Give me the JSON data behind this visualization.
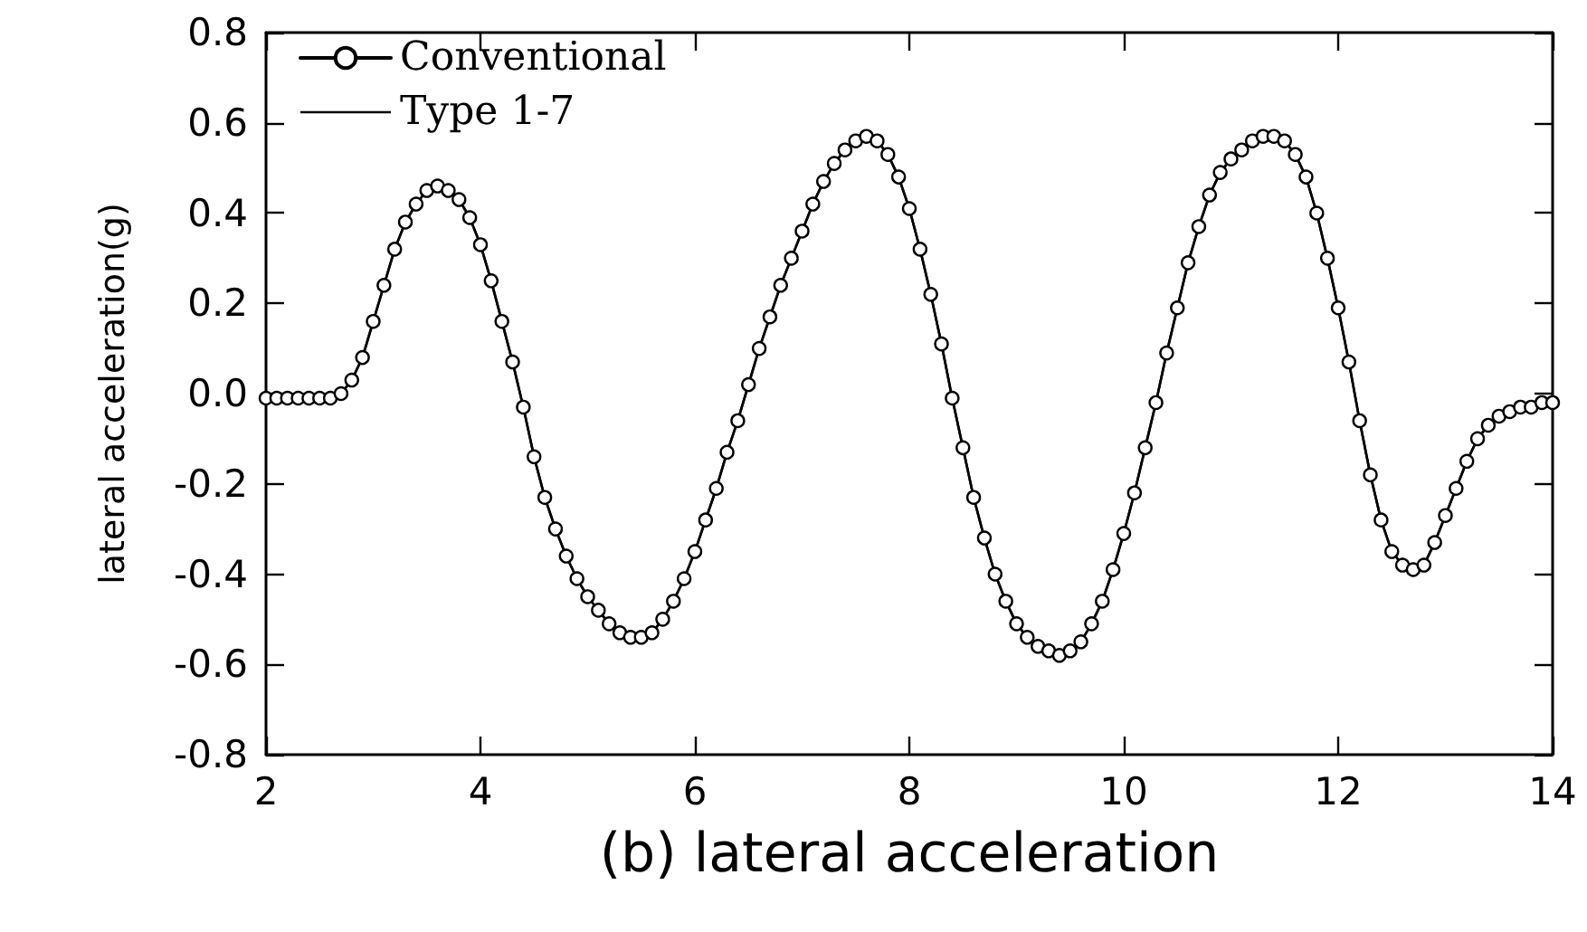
{
  "chart_data": {
    "type": "line",
    "xlabel": "(b) lateral acceleration",
    "ylabel": "lateral acceleration(g)",
    "x": [
      2.0,
      2.1,
      2.2,
      2.3,
      2.4,
      2.5,
      2.6,
      2.7,
      2.8,
      2.9,
      3.0,
      3.1,
      3.2,
      3.3,
      3.4,
      3.5,
      3.6,
      3.7,
      3.8,
      3.9,
      4.0,
      4.1,
      4.2,
      4.3,
      4.4,
      4.5,
      4.6,
      4.7,
      4.8,
      4.9,
      5.0,
      5.1,
      5.2,
      5.3,
      5.4,
      5.5,
      5.6,
      5.7,
      5.8,
      5.9,
      6.0,
      6.1,
      6.2,
      6.3,
      6.4,
      6.5,
      6.6,
      6.7,
      6.8,
      6.9,
      7.0,
      7.1,
      7.2,
      7.3,
      7.4,
      7.5,
      7.6,
      7.7,
      7.8,
      7.9,
      8.0,
      8.1,
      8.2,
      8.3,
      8.4,
      8.5,
      8.6,
      8.7,
      8.8,
      8.9,
      9.0,
      9.1,
      9.2,
      9.3,
      9.4,
      9.5,
      9.6,
      9.7,
      9.8,
      9.9,
      10.0,
      10.1,
      10.2,
      10.3,
      10.4,
      10.5,
      10.6,
      10.7,
      10.8,
      10.9,
      11.0,
      11.1,
      11.2,
      11.3,
      11.4,
      11.5,
      11.6,
      11.7,
      11.8,
      11.9,
      12.0,
      12.1,
      12.2,
      12.3,
      12.4,
      12.5,
      12.6,
      12.7,
      12.8,
      12.9,
      13.0,
      13.1,
      13.2,
      13.3,
      13.4,
      13.5,
      13.6,
      13.7,
      13.8,
      13.9,
      14.0
    ],
    "series": [
      {
        "name": "Conventional",
        "color": "#000000",
        "marker": "circle",
        "values": [
          -0.01,
          -0.01,
          -0.01,
          -0.01,
          -0.01,
          -0.01,
          -0.01,
          0.0,
          0.03,
          0.08,
          0.16,
          0.24,
          0.32,
          0.38,
          0.42,
          0.45,
          0.46,
          0.45,
          0.43,
          0.39,
          0.33,
          0.25,
          0.16,
          0.07,
          -0.03,
          -0.14,
          -0.23,
          -0.3,
          -0.36,
          -0.41,
          -0.45,
          -0.48,
          -0.51,
          -0.53,
          -0.54,
          -0.54,
          -0.53,
          -0.5,
          -0.46,
          -0.41,
          -0.35,
          -0.28,
          -0.21,
          -0.13,
          -0.06,
          0.02,
          0.1,
          0.17,
          0.24,
          0.3,
          0.36,
          0.42,
          0.47,
          0.51,
          0.54,
          0.56,
          0.57,
          0.56,
          0.53,
          0.48,
          0.41,
          0.32,
          0.22,
          0.11,
          -0.01,
          -0.12,
          -0.23,
          -0.32,
          -0.4,
          -0.46,
          -0.51,
          -0.54,
          -0.56,
          -0.57,
          -0.58,
          -0.57,
          -0.55,
          -0.51,
          -0.46,
          -0.39,
          -0.31,
          -0.22,
          -0.12,
          -0.02,
          0.09,
          0.19,
          0.29,
          0.37,
          0.44,
          0.49,
          0.52,
          0.54,
          0.56,
          0.57,
          0.57,
          0.56,
          0.53,
          0.48,
          0.4,
          0.3,
          0.19,
          0.07,
          -0.06,
          -0.18,
          -0.28,
          -0.35,
          -0.38,
          -0.39,
          -0.38,
          -0.33,
          -0.27,
          -0.21,
          -0.15,
          -0.1,
          -0.07,
          -0.05,
          -0.04,
          -0.03,
          -0.03,
          -0.02,
          -0.02
        ]
      },
      {
        "name": "Type 1-7",
        "color": "#000000",
        "marker": "none",
        "values": [
          -0.01,
          -0.01,
          -0.01,
          -0.01,
          -0.01,
          -0.01,
          -0.01,
          0.0,
          0.03,
          0.08,
          0.16,
          0.24,
          0.32,
          0.38,
          0.42,
          0.45,
          0.46,
          0.45,
          0.43,
          0.39,
          0.33,
          0.25,
          0.16,
          0.07,
          -0.03,
          -0.14,
          -0.23,
          -0.3,
          -0.36,
          -0.41,
          -0.45,
          -0.48,
          -0.51,
          -0.53,
          -0.54,
          -0.54,
          -0.53,
          -0.5,
          -0.46,
          -0.41,
          -0.35,
          -0.28,
          -0.21,
          -0.13,
          -0.06,
          0.02,
          0.1,
          0.17,
          0.24,
          0.3,
          0.36,
          0.42,
          0.47,
          0.51,
          0.54,
          0.56,
          0.57,
          0.56,
          0.53,
          0.48,
          0.41,
          0.32,
          0.22,
          0.11,
          -0.01,
          -0.12,
          -0.23,
          -0.32,
          -0.4,
          -0.46,
          -0.51,
          -0.54,
          -0.56,
          -0.57,
          -0.58,
          -0.57,
          -0.55,
          -0.51,
          -0.46,
          -0.39,
          -0.31,
          -0.22,
          -0.12,
          -0.02,
          0.09,
          0.19,
          0.29,
          0.37,
          0.44,
          0.49,
          0.52,
          0.54,
          0.56,
          0.57,
          0.57,
          0.56,
          0.53,
          0.48,
          0.4,
          0.3,
          0.19,
          0.07,
          -0.06,
          -0.18,
          -0.28,
          -0.35,
          -0.38,
          -0.39,
          -0.38,
          -0.33,
          -0.27,
          -0.21,
          -0.15,
          -0.1,
          -0.07,
          -0.05,
          -0.04,
          -0.03,
          -0.03,
          -0.02,
          -0.02
        ]
      }
    ],
    "xlim": [
      2,
      14
    ],
    "xticks": [
      2,
      4,
      6,
      8,
      10,
      12,
      14
    ],
    "ylim": [
      -0.8,
      0.8
    ],
    "yticks": [
      -0.8,
      -0.6,
      -0.4,
      -0.2,
      {
        "value": 0,
        "label": "0.0"
      },
      0.2,
      0.4,
      0.6,
      0.8
    ],
    "grid": false,
    "legend": "top left",
    "line_style": "solid"
  }
}
